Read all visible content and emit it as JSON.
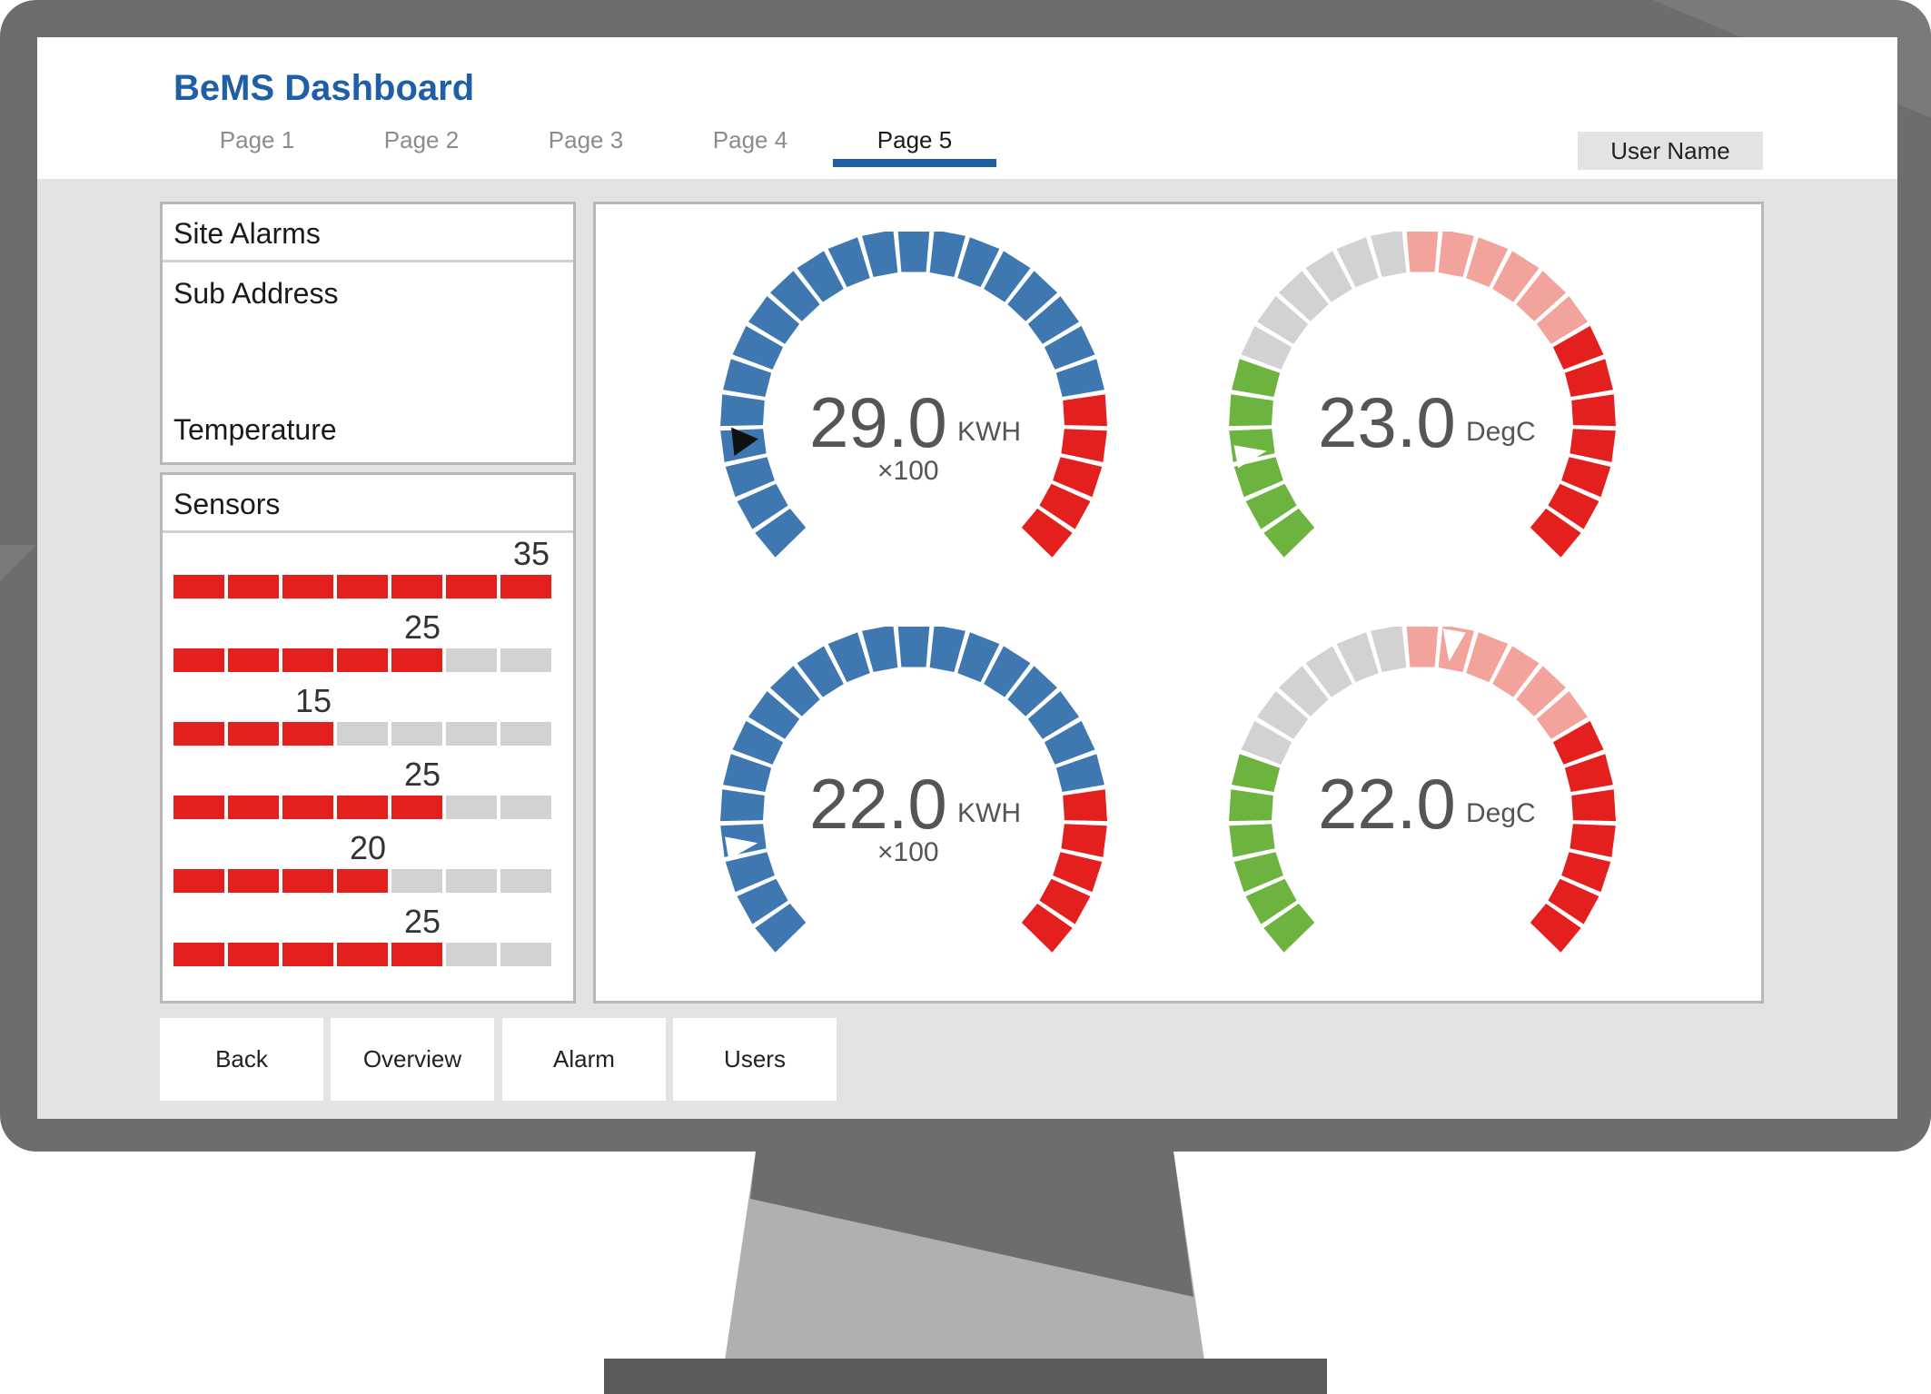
{
  "app": {
    "title": "BeMS Dashboard"
  },
  "tabs": [
    {
      "label": "Page 1",
      "active": false
    },
    {
      "label": "Page 2",
      "active": false
    },
    {
      "label": "Page 3",
      "active": false
    },
    {
      "label": "Page 4",
      "active": false
    },
    {
      "label": "Page 5",
      "active": true
    }
  ],
  "user": {
    "label": "User Name"
  },
  "site_panel": {
    "heading": "Site Alarms",
    "sub_address": "Sub Address",
    "temperature": "Temperature"
  },
  "sensors": {
    "heading": "Sensors",
    "segments_total": 7,
    "rows": [
      {
        "value": "35",
        "filled": 7
      },
      {
        "value": "25",
        "filled": 5
      },
      {
        "value": "15",
        "filled": 3
      },
      {
        "value": "25",
        "filled": 5
      },
      {
        "value": "20",
        "filled": 4
      },
      {
        "value": "25",
        "filled": 5
      }
    ]
  },
  "gauges": [
    {
      "value": "29.0",
      "unit": "KWH",
      "multiplier": "×100",
      "scheme": "energy",
      "pointer": "triangle"
    },
    {
      "value": "23.0",
      "unit": "DegC",
      "multiplier": "",
      "scheme": "temperature",
      "pointer": "notch"
    },
    {
      "value": "22.0",
      "unit": "KWH",
      "multiplier": "×100",
      "scheme": "energy",
      "pointer": "notch"
    },
    {
      "value": "22.0",
      "unit": "DegC",
      "multiplier": "",
      "scheme": "temperature",
      "pointer": "notch-top"
    }
  ],
  "gauge_scheme": {
    "segment_count": 25,
    "energy": {
      "blue": 20,
      "red": 5
    },
    "temperature": {
      "green": 6,
      "grey": 6,
      "pink": 6,
      "red": 7
    }
  },
  "colors": {
    "brand": "#1f5fa6",
    "alarm_red": "#e4201f",
    "inactive_grey": "#d2d2d2",
    "gauge_blue": "#3f78b0",
    "gauge_green": "#6db33f",
    "gauge_pink": "#f2a39b"
  },
  "bottom_nav": [
    {
      "label": "Back"
    },
    {
      "label": "Overview"
    },
    {
      "label": "Alarm"
    },
    {
      "label": "Users"
    }
  ]
}
